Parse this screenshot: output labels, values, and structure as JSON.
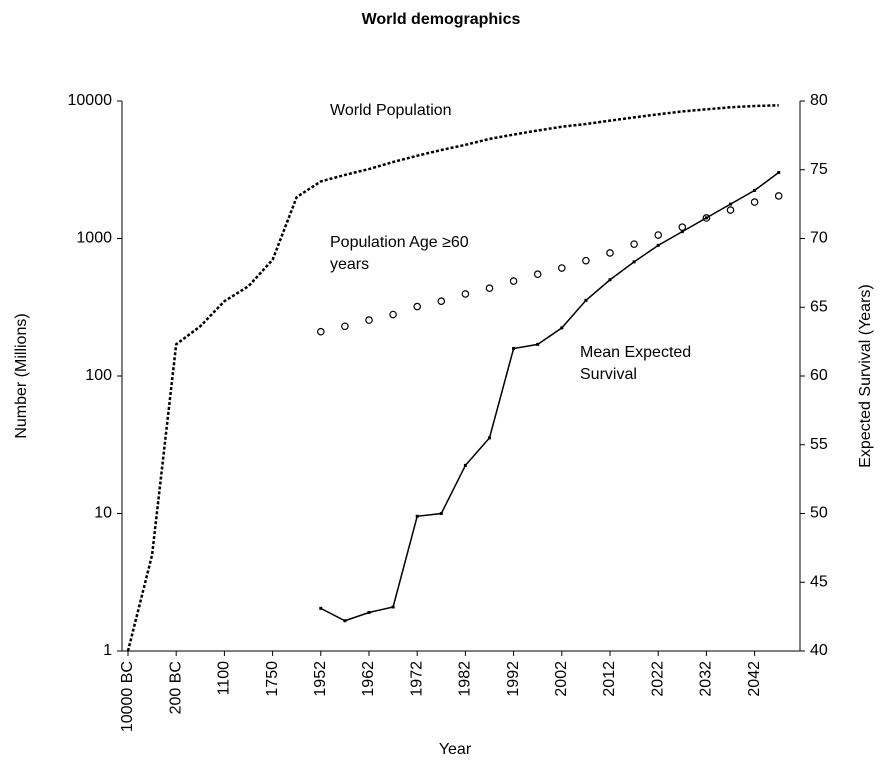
{
  "chart_data": {
    "type": "line",
    "title": "World demographics",
    "x_label": "Year",
    "y_label": "Number (Millions)",
    "y2_label": "Expected Survival (Years)",
    "categories": [
      "10000 BC",
      null,
      "200 BC",
      null,
      "1100",
      null,
      "1750",
      null,
      "1952",
      null,
      "1962",
      null,
      "1972",
      null,
      "1982",
      null,
      "1992",
      null,
      "2002",
      null,
      "2012",
      null,
      "2022",
      null,
      "2032",
      null,
      "2042",
      null
    ],
    "log_scale": true,
    "ylim": [
      1,
      10000
    ],
    "yticks": [
      1,
      10,
      100,
      1000,
      10000
    ],
    "y2lim": [
      40,
      80
    ],
    "y2ticks": [
      40,
      45,
      50,
      55,
      60,
      65,
      70,
      75,
      80
    ],
    "series": [
      {
        "name": "World Population",
        "color": "#000000",
        "style": "dotted",
        "values": [
          1,
          5,
          170,
          230,
          350,
          450,
          700,
          2000,
          2600,
          2900,
          3200,
          3600,
          4000,
          4400,
          4800,
          5300,
          5700,
          6100,
          6500,
          6800,
          7200,
          7600,
          8000,
          8400,
          8700,
          9000,
          9200,
          9300
        ]
      },
      {
        "name": "Population Age ≥60 years",
        "color": "#000000",
        "style": "circles",
        "values": [
          null,
          null,
          null,
          null,
          null,
          null,
          null,
          null,
          210,
          230,
          255,
          280,
          320,
          350,
          395,
          435,
          490,
          550,
          610,
          690,
          785,
          910,
          1060,
          1210,
          1410,
          1610,
          1840,
          2040
        ]
      },
      {
        "name": "Mean Expected Survival",
        "color": "#000000",
        "style": "solid",
        "axis": "y2",
        "values": [
          null,
          null,
          null,
          null,
          null,
          null,
          null,
          null,
          43.1,
          42.2,
          42.8,
          43.2,
          49.8,
          50,
          53.5,
          55.5,
          62,
          62.3,
          63.5,
          65.5,
          67,
          68.3,
          69.5,
          70.5,
          71.5,
          72.5,
          73.5,
          74.8
        ]
      }
    ]
  }
}
